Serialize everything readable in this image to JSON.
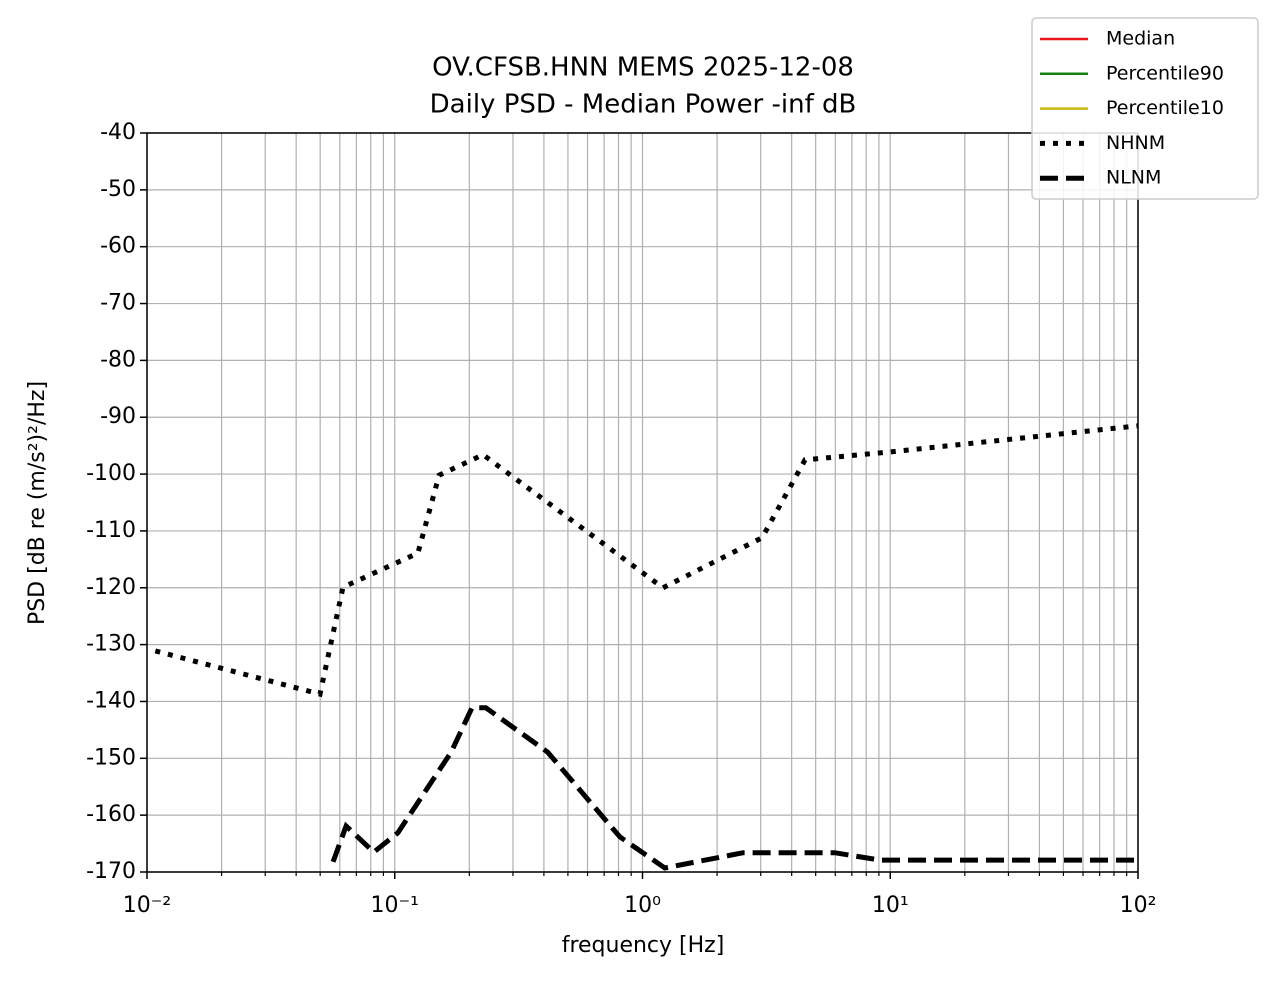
{
  "chart_data": {
    "type": "line",
    "title": "OV.CFSB.HNN MEMS 2025-12-08",
    "subtitle": "Daily PSD - Median Power -inf dB",
    "x_label": "frequency [Hz]",
    "y_label": "PSD [dB re (m/s²)²/Hz]",
    "xscale": "log",
    "grid": true,
    "legend": "upper right",
    "xlim": [
      0.01,
      100
    ],
    "ylim": [
      -170,
      -40
    ],
    "xticks": [
      {
        "value": 0.01,
        "label": "10⁻²"
      },
      {
        "value": 0.1,
        "label": "10⁻¹"
      },
      {
        "value": 1,
        "label": "10⁰"
      },
      {
        "value": 10,
        "label": "10¹"
      },
      {
        "value": 100,
        "label": "10²"
      }
    ],
    "xminorticks": [
      0.02,
      0.03,
      0.04,
      0.05,
      0.06,
      0.07,
      0.08,
      0.09,
      0.2,
      0.3,
      0.4,
      0.5,
      0.6,
      0.7,
      0.8,
      0.9,
      2,
      3,
      4,
      5,
      6,
      7,
      8,
      9,
      20,
      30,
      40,
      50,
      60,
      70,
      80,
      90
    ],
    "yticks": [
      -40,
      -50,
      -60,
      -70,
      -80,
      -90,
      -100,
      -110,
      -120,
      -130,
      -140,
      -150,
      -160,
      -170
    ],
    "series": [
      {
        "name": "Median",
        "color": "#e8161b",
        "linestyle": "solid",
        "x": [],
        "values": []
      },
      {
        "name": "Percentile90",
        "color": "#118011",
        "linestyle": "solid",
        "x": [],
        "values": []
      },
      {
        "name": "Percentile10",
        "color": "#cbb915",
        "linestyle": "solid",
        "x": [],
        "values": []
      },
      {
        "name": "NHNM",
        "color": "#000000",
        "linestyle": "dotted",
        "x": [
          0.0108,
          0.0499,
          0.0618,
          0.124,
          0.151,
          0.227,
          1.21,
          3.04,
          4.53,
          10,
          100
        ],
        "values": [
          -131.1,
          -138.7,
          -119.9,
          -113.9,
          -100.2,
          -96.6,
          -120,
          -111.2,
          -97.5,
          -96.1,
          -91.5
        ]
      },
      {
        "name": "NLNM",
        "color": "#000000",
        "linestyle": "dashed",
        "x": [
          0.0564,
          0.0636,
          0.0823,
          0.103,
          0.169,
          0.205,
          0.233,
          0.414,
          0.81,
          1.23,
          2.55,
          5.96,
          9.1,
          100
        ],
        "values": [
          -168.2,
          -161.9,
          -166.5,
          -163.1,
          -148.9,
          -141.1,
          -141.1,
          -148.9,
          -163.8,
          -169.3,
          -166.6,
          -166.6,
          -167.9,
          -167.9
        ]
      }
    ]
  }
}
